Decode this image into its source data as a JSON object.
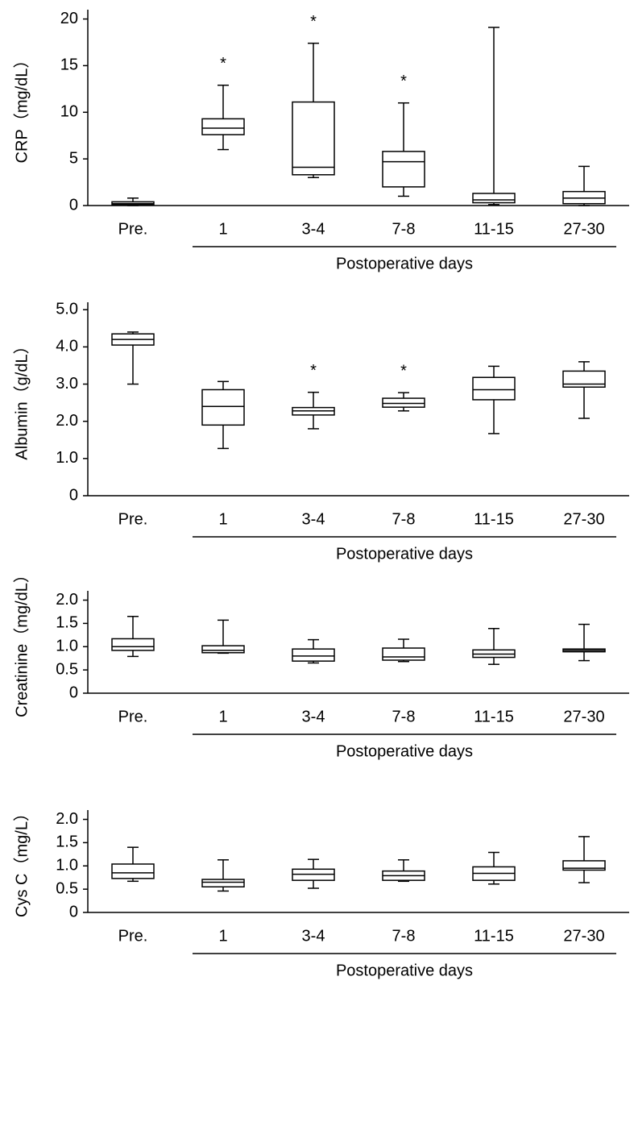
{
  "chart_data": [
    {
      "type": "box",
      "ylabel": "CRP（mg/dL）",
      "group_label": "Postoperative days",
      "categories": [
        "Pre.",
        "1",
        "3-4",
        "7-8",
        "11-15",
        "27-30"
      ],
      "min": [
        0,
        6.0,
        3.0,
        1.0,
        0.1,
        0
      ],
      "q1": [
        0.1,
        7.6,
        3.3,
        2.0,
        0.3,
        0.2
      ],
      "median": [
        0.2,
        8.3,
        4.1,
        4.7,
        0.6,
        0.8
      ],
      "q3": [
        0.4,
        9.3,
        11.1,
        5.8,
        1.3,
        1.5
      ],
      "max": [
        0.8,
        12.9,
        17.4,
        11.0,
        19.1,
        4.2
      ],
      "annotations": [
        null,
        "*",
        "*",
        "*",
        null,
        null
      ],
      "ylim": [
        0,
        21
      ],
      "yticks": [
        0,
        5,
        10,
        15,
        20
      ]
    },
    {
      "type": "box",
      "ylabel": "Albumin（g/dL）",
      "group_label": "Postoperative days",
      "categories": [
        "Pre.",
        "1",
        "3-4",
        "7-8",
        "11-15",
        "27-30"
      ],
      "min": [
        3.0,
        1.27,
        1.8,
        2.28,
        1.67,
        2.08
      ],
      "q1": [
        4.05,
        1.9,
        2.17,
        2.38,
        2.58,
        2.92
      ],
      "median": [
        4.2,
        2.4,
        2.28,
        2.48,
        2.85,
        3.0
      ],
      "q3": [
        4.35,
        2.85,
        2.37,
        2.62,
        3.18,
        3.35
      ],
      "max": [
        4.4,
        3.07,
        2.78,
        2.77,
        3.48,
        3.6
      ],
      "annotations": [
        null,
        null,
        "*",
        "*",
        null,
        null
      ],
      "ylim": [
        0,
        5.2
      ],
      "yticks": [
        0,
        {
          "value": 1,
          "label": "1.0"
        },
        {
          "value": 2,
          "label": "2.0"
        },
        {
          "value": 3,
          "label": "3.0"
        },
        {
          "value": 4,
          "label": "4.0"
        },
        {
          "value": 5,
          "label": "5.0"
        }
      ]
    },
    {
      "type": "box",
      "ylabel": "Creatinine（mg/dL）",
      "group_label": "Postoperative days",
      "categories": [
        "Pre.",
        "1",
        "3-4",
        "7-8",
        "11-15",
        "27-30"
      ],
      "min": [
        0.79,
        0.86,
        0.65,
        0.68,
        0.62,
        0.7
      ],
      "q1": [
        0.92,
        0.87,
        0.69,
        0.71,
        0.77,
        0.89
      ],
      "median": [
        1.0,
        0.92,
        0.8,
        0.78,
        0.84,
        0.92
      ],
      "q3": [
        1.17,
        1.02,
        0.95,
        0.97,
        0.93,
        0.95
      ],
      "max": [
        1.65,
        1.57,
        1.15,
        1.16,
        1.39,
        1.48
      ],
      "ylim": [
        0,
        2.2
      ],
      "yticks": [
        0,
        0.5,
        {
          "value": 1,
          "label": "1.0"
        },
        1.5,
        {
          "value": 2,
          "label": "2.0"
        }
      ]
    },
    {
      "type": "box",
      "ylabel": "Cys C（mg/L）",
      "group_label": "Postoperative days",
      "categories": [
        "Pre.",
        "1",
        "3-4",
        "7-8",
        "11-15",
        "27-30"
      ],
      "min": [
        0.67,
        0.46,
        0.52,
        0.67,
        0.61,
        0.64
      ],
      "q1": [
        0.73,
        0.55,
        0.69,
        0.69,
        0.69,
        0.91
      ],
      "median": [
        0.85,
        0.65,
        0.82,
        0.79,
        0.84,
        0.95
      ],
      "q3": [
        1.04,
        0.71,
        0.93,
        0.89,
        0.98,
        1.11
      ],
      "max": [
        1.4,
        1.13,
        1.14,
        1.13,
        1.29,
        1.63
      ],
      "ylim": [
        0,
        2.2
      ],
      "yticks": [
        0,
        0.5,
        {
          "value": 1,
          "label": "1.0"
        },
        1.5,
        {
          "value": 2,
          "label": "2.0"
        }
      ]
    }
  ]
}
